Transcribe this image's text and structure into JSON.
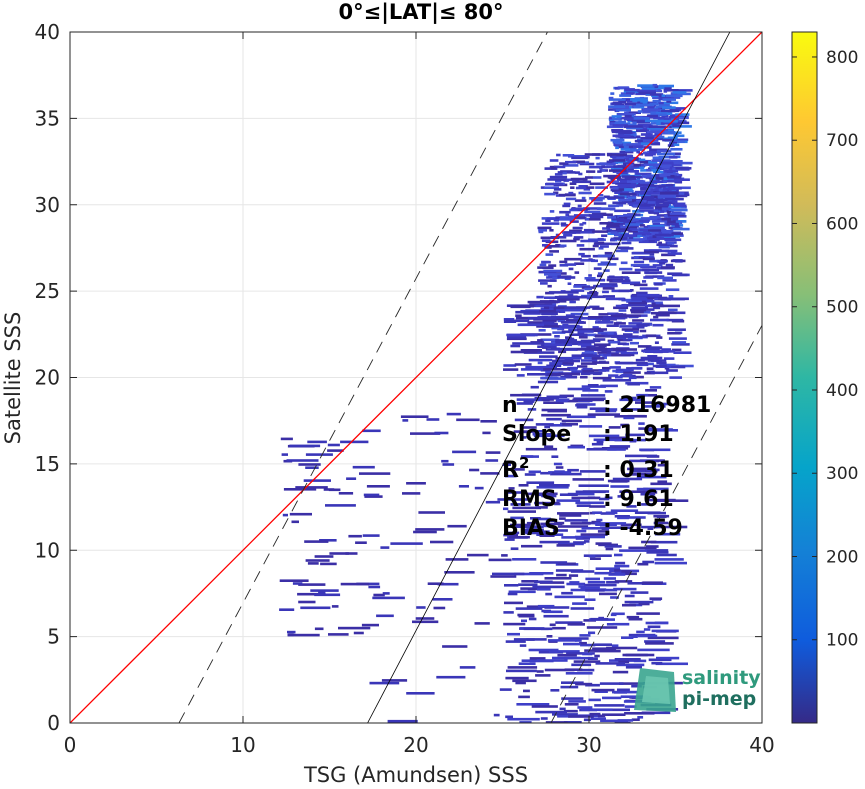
{
  "chart_data": {
    "type": "heatmap",
    "title": "0°≤|LAT|≤ 80°",
    "xlabel": "TSG (Amundsen) SSS",
    "ylabel": "Satellite SSS",
    "xlim": [
      0,
      40
    ],
    "ylim": [
      0,
      40
    ],
    "xticks": [
      "0",
      "10",
      "20",
      "30",
      "40"
    ],
    "yticks": [
      "0",
      "5",
      "10",
      "15",
      "20",
      "25",
      "30",
      "35",
      "40"
    ],
    "grid": true,
    "colorbar": {
      "range": [
        0,
        830
      ],
      "ticks": [
        "100",
        "200",
        "300",
        "400",
        "500",
        "600",
        "700",
        "800"
      ],
      "tick_values": [
        100,
        200,
        300,
        400,
        500,
        600,
        700,
        800
      ],
      "colormap": "parula"
    },
    "reference_lines": {
      "identity": {
        "color": "#ff0000",
        "slope": 1,
        "intercept": 0
      },
      "fit": {
        "color": "#000000",
        "slope": 1.91,
        "x_at_y0": 17.2
      },
      "bounds": [
        {
          "style": "dashed",
          "x_at_y0": 6.3,
          "x_at_y40": 27.6
        },
        {
          "style": "dashed",
          "x_at_y0": 27.8,
          "x_at_y40": 49.0
        }
      ]
    },
    "stats": {
      "labels": [
        "n",
        "Slope",
        "R2",
        "RMS",
        "BIAS"
      ],
      "values": [
        ": 216981",
        ": 1.91",
        ": 0.31",
        ": 9.61",
        ": -4.59"
      ]
    },
    "density_regions": [
      {
        "x": [
          31,
          35
        ],
        "y": [
          28,
          37
        ],
        "level": "high"
      },
      {
        "x": [
          27,
          35
        ],
        "y": [
          20,
          33
        ],
        "level": "medium"
      },
      {
        "x": [
          25,
          34
        ],
        "y": [
          0,
          25
        ],
        "level": "low"
      },
      {
        "x": [
          17,
          25
        ],
        "y": [
          0,
          18
        ],
        "level": "sparse"
      },
      {
        "x": [
          12,
          17
        ],
        "y": [
          5,
          17
        ],
        "level": "sparse"
      }
    ]
  },
  "logo": {
    "line1": "salinity",
    "line2": "pi-mep"
  }
}
